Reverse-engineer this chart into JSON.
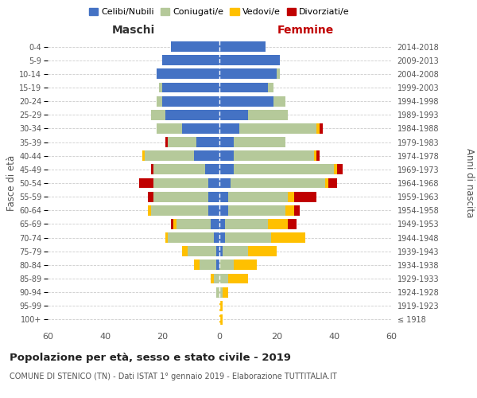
{
  "age_groups": [
    "100+",
    "95-99",
    "90-94",
    "85-89",
    "80-84",
    "75-79",
    "70-74",
    "65-69",
    "60-64",
    "55-59",
    "50-54",
    "45-49",
    "40-44",
    "35-39",
    "30-34",
    "25-29",
    "20-24",
    "15-19",
    "10-14",
    "5-9",
    "0-4"
  ],
  "birth_years": [
    "≤ 1918",
    "1919-1923",
    "1924-1928",
    "1929-1933",
    "1934-1938",
    "1939-1943",
    "1944-1948",
    "1949-1953",
    "1954-1958",
    "1959-1963",
    "1964-1968",
    "1969-1973",
    "1974-1978",
    "1979-1983",
    "1984-1988",
    "1989-1993",
    "1994-1998",
    "1999-2003",
    "2004-2008",
    "2009-2013",
    "2014-2018"
  ],
  "maschi": {
    "celibi": [
      0,
      0,
      0,
      0,
      1,
      1,
      2,
      3,
      4,
      4,
      4,
      5,
      9,
      8,
      13,
      19,
      20,
      20,
      22,
      20,
      17
    ],
    "coniugati": [
      0,
      0,
      1,
      2,
      6,
      10,
      16,
      12,
      20,
      19,
      19,
      18,
      17,
      10,
      9,
      5,
      2,
      1,
      0,
      0,
      0
    ],
    "vedovi": [
      0,
      0,
      0,
      1,
      2,
      2,
      1,
      1,
      1,
      0,
      0,
      0,
      1,
      0,
      0,
      0,
      0,
      0,
      0,
      0,
      0
    ],
    "divorziati": [
      0,
      0,
      0,
      0,
      0,
      0,
      0,
      1,
      0,
      2,
      5,
      1,
      0,
      1,
      0,
      0,
      0,
      0,
      0,
      0,
      0
    ]
  },
  "femmine": {
    "nubili": [
      0,
      0,
      0,
      0,
      0,
      1,
      2,
      2,
      3,
      3,
      4,
      5,
      5,
      5,
      7,
      10,
      19,
      17,
      20,
      21,
      16
    ],
    "coniugate": [
      0,
      0,
      1,
      3,
      5,
      9,
      16,
      15,
      20,
      21,
      33,
      35,
      28,
      18,
      27,
      14,
      4,
      2,
      1,
      0,
      0
    ],
    "vedove": [
      1,
      1,
      2,
      7,
      8,
      10,
      12,
      7,
      3,
      2,
      1,
      1,
      1,
      0,
      1,
      0,
      0,
      0,
      0,
      0,
      0
    ],
    "divorziate": [
      0,
      0,
      0,
      0,
      0,
      0,
      0,
      3,
      2,
      8,
      3,
      2,
      1,
      0,
      1,
      0,
      0,
      0,
      0,
      0,
      0
    ]
  },
  "color_celibi": "#4472c4",
  "color_coniugati": "#b5c99a",
  "color_vedovi": "#ffc000",
  "color_divorziati": "#c00000",
  "title": "Popolazione per età, sesso e stato civile - 2019",
  "subtitle": "COMUNE DI STENICO (TN) - Dati ISTAT 1° gennaio 2019 - Elaborazione TUTTITALIA.IT",
  "xlabel_maschi": "Maschi",
  "xlabel_femmine": "Femmine",
  "ylabel_left": "Fasce di età",
  "ylabel_right": "Anni di nascita",
  "xlim": 60,
  "bg_color": "#ffffff",
  "grid_color": "#cccccc"
}
